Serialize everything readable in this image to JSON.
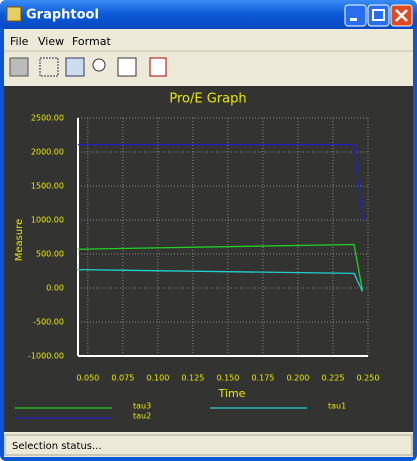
{
  "window": {
    "title": "Graphtool"
  },
  "menu": [
    "File",
    "View",
    "Format"
  ],
  "status": "Selection status...",
  "chart_data": {
    "type": "line",
    "title": "Pro/E Graph",
    "x_label": "Time",
    "y_label": "Measure",
    "x": [
      0.043,
      0.24,
      0.246
    ],
    "series": [
      {
        "name": "tau3",
        "color": "#22d022",
        "values": [
          570,
          640,
          -30
        ]
      },
      {
        "name": "tau1",
        "color": "#20d0d0",
        "values": [
          270,
          215,
          -50
        ]
      },
      {
        "name": "tau2",
        "color": "#2020c8",
        "values": [
          2110,
          2110,
          1000
        ]
      }
    ],
    "xlim": [
      0.043,
      0.25
    ],
    "xticks": [
      {
        "value": 0.05,
        "label": "0.050"
      },
      {
        "value": 0.075,
        "label": "0.075"
      },
      {
        "value": 0.1,
        "label": "0.100"
      },
      {
        "value": 0.125,
        "label": "0.125"
      },
      {
        "value": 0.15,
        "label": "0.150"
      },
      {
        "value": 0.175,
        "label": "0.175"
      },
      {
        "value": 0.2,
        "label": "0.200"
      },
      {
        "value": 0.225,
        "label": "0.225"
      },
      {
        "value": 0.25,
        "label": "0.250"
      }
    ],
    "ylim": [
      -1000,
      2500
    ],
    "yticks": [
      {
        "value": -1000,
        "label": "-1000.00"
      },
      {
        "value": -500,
        "label": "-500.00"
      },
      {
        "value": 0,
        "label": "0.00"
      },
      {
        "value": 500,
        "label": "500.00"
      },
      {
        "value": 1000,
        "label": "1000.00"
      },
      {
        "value": 1500,
        "label": "1500.00"
      },
      {
        "value": 2000,
        "label": "2000.00"
      },
      {
        "value": 2500,
        "label": "2500.00"
      }
    ],
    "grid": true,
    "legend": "bottom"
  }
}
